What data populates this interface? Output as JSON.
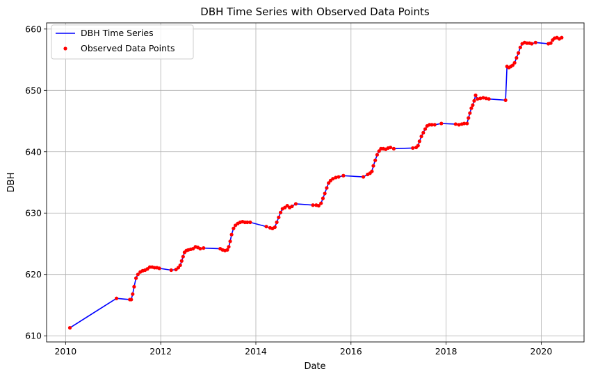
{
  "chart_data": {
    "type": "line",
    "title": "DBH Time Series with Observed Data Points",
    "xlabel": "Date",
    "ylabel": "DBH",
    "xlim": [
      2009.6,
      2020.9
    ],
    "ylim": [
      609,
      661
    ],
    "x_ticks": [
      2010,
      2012,
      2014,
      2016,
      2018,
      2020
    ],
    "y_ticks": [
      610,
      620,
      630,
      640,
      650,
      660
    ],
    "grid": true,
    "legend_position": "top-left",
    "colors": {
      "line": "#0000ff",
      "points": "#ff0000",
      "grid": "#b0b0b0"
    },
    "series": [
      {
        "name": "DBH Time Series",
        "kind": "line"
      },
      {
        "name": "Observed Data Points",
        "kind": "scatter"
      }
    ],
    "points": [
      [
        2010.09,
        611.3
      ],
      [
        2011.07,
        616.1
      ],
      [
        2011.35,
        615.9
      ],
      [
        2011.38,
        615.9
      ],
      [
        2011.41,
        616.8
      ],
      [
        2011.44,
        618.0
      ],
      [
        2011.48,
        619.4
      ],
      [
        2011.52,
        620.0
      ],
      [
        2011.57,
        620.4
      ],
      [
        2011.62,
        620.6
      ],
      [
        2011.67,
        620.7
      ],
      [
        2011.72,
        620.9
      ],
      [
        2011.77,
        621.2
      ],
      [
        2011.82,
        621.2
      ],
      [
        2011.87,
        621.1
      ],
      [
        2011.92,
        621.1
      ],
      [
        2011.97,
        621.0
      ],
      [
        2012.22,
        620.7
      ],
      [
        2012.32,
        620.8
      ],
      [
        2012.37,
        621.1
      ],
      [
        2012.41,
        621.5
      ],
      [
        2012.44,
        622.2
      ],
      [
        2012.47,
        622.9
      ],
      [
        2012.5,
        623.6
      ],
      [
        2012.54,
        623.9
      ],
      [
        2012.58,
        624.0
      ],
      [
        2012.63,
        624.1
      ],
      [
        2012.68,
        624.2
      ],
      [
        2012.73,
        624.5
      ],
      [
        2012.78,
        624.4
      ],
      [
        2012.83,
        624.2
      ],
      [
        2012.9,
        624.3
      ],
      [
        2013.25,
        624.2
      ],
      [
        2013.3,
        624.0
      ],
      [
        2013.35,
        623.9
      ],
      [
        2013.4,
        624.0
      ],
      [
        2013.43,
        624.5
      ],
      [
        2013.46,
        625.4
      ],
      [
        2013.49,
        626.5
      ],
      [
        2013.53,
        627.5
      ],
      [
        2013.57,
        628.0
      ],
      [
        2013.62,
        628.3
      ],
      [
        2013.67,
        628.5
      ],
      [
        2013.72,
        628.6
      ],
      [
        2013.77,
        628.5
      ],
      [
        2013.82,
        628.5
      ],
      [
        2013.88,
        628.5
      ],
      [
        2014.22,
        627.8
      ],
      [
        2014.3,
        627.6
      ],
      [
        2014.35,
        627.5
      ],
      [
        2014.4,
        627.7
      ],
      [
        2014.44,
        628.5
      ],
      [
        2014.48,
        629.3
      ],
      [
        2014.52,
        630.1
      ],
      [
        2014.56,
        630.7
      ],
      [
        2014.61,
        630.9
      ],
      [
        2014.66,
        631.2
      ],
      [
        2014.71,
        630.9
      ],
      [
        2014.76,
        631.1
      ],
      [
        2014.84,
        631.5
      ],
      [
        2015.2,
        631.3
      ],
      [
        2015.27,
        631.3
      ],
      [
        2015.32,
        631.2
      ],
      [
        2015.37,
        631.6
      ],
      [
        2015.41,
        632.4
      ],
      [
        2015.45,
        633.2
      ],
      [
        2015.49,
        634.1
      ],
      [
        2015.53,
        634.9
      ],
      [
        2015.57,
        635.3
      ],
      [
        2015.62,
        635.6
      ],
      [
        2015.68,
        635.8
      ],
      [
        2015.74,
        635.9
      ],
      [
        2015.84,
        636.1
      ],
      [
        2016.26,
        635.9
      ],
      [
        2016.35,
        636.3
      ],
      [
        2016.4,
        636.5
      ],
      [
        2016.44,
        636.8
      ],
      [
        2016.47,
        637.7
      ],
      [
        2016.51,
        638.6
      ],
      [
        2016.55,
        639.5
      ],
      [
        2016.59,
        640.1
      ],
      [
        2016.63,
        640.5
      ],
      [
        2016.68,
        640.5
      ],
      [
        2016.73,
        640.4
      ],
      [
        2016.78,
        640.6
      ],
      [
        2016.83,
        640.7
      ],
      [
        2016.9,
        640.5
      ],
      [
        2017.3,
        640.6
      ],
      [
        2017.37,
        640.7
      ],
      [
        2017.41,
        641.0
      ],
      [
        2017.44,
        641.7
      ],
      [
        2017.48,
        642.5
      ],
      [
        2017.52,
        643.1
      ],
      [
        2017.56,
        643.7
      ],
      [
        2017.6,
        644.2
      ],
      [
        2017.65,
        644.4
      ],
      [
        2017.7,
        644.4
      ],
      [
        2017.76,
        644.4
      ],
      [
        2017.9,
        644.6
      ],
      [
        2018.2,
        644.5
      ],
      [
        2018.27,
        644.4
      ],
      [
        2018.33,
        644.5
      ],
      [
        2018.38,
        644.6
      ],
      [
        2018.44,
        644.6
      ],
      [
        2018.47,
        645.5
      ],
      [
        2018.5,
        646.3
      ],
      [
        2018.53,
        647.1
      ],
      [
        2018.56,
        647.6
      ],
      [
        2018.59,
        648.3
      ],
      [
        2018.62,
        649.2
      ],
      [
        2018.66,
        648.6
      ],
      [
        2018.72,
        648.7
      ],
      [
        2018.78,
        648.8
      ],
      [
        2018.84,
        648.7
      ],
      [
        2018.9,
        648.6
      ],
      [
        2019.25,
        648.4
      ],
      [
        2019.28,
        653.9
      ],
      [
        2019.32,
        653.7
      ],
      [
        2019.36,
        653.9
      ],
      [
        2019.4,
        654.1
      ],
      [
        2019.44,
        654.5
      ],
      [
        2019.48,
        655.3
      ],
      [
        2019.52,
        656.1
      ],
      [
        2019.56,
        657.0
      ],
      [
        2019.6,
        657.6
      ],
      [
        2019.65,
        657.8
      ],
      [
        2019.7,
        657.7
      ],
      [
        2019.75,
        657.7
      ],
      [
        2019.8,
        657.6
      ],
      [
        2019.88,
        657.8
      ],
      [
        2020.15,
        657.6
      ],
      [
        2020.2,
        657.7
      ],
      [
        2020.24,
        658.2
      ],
      [
        2020.28,
        658.5
      ],
      [
        2020.33,
        658.6
      ],
      [
        2020.38,
        658.4
      ],
      [
        2020.43,
        658.6
      ]
    ]
  }
}
